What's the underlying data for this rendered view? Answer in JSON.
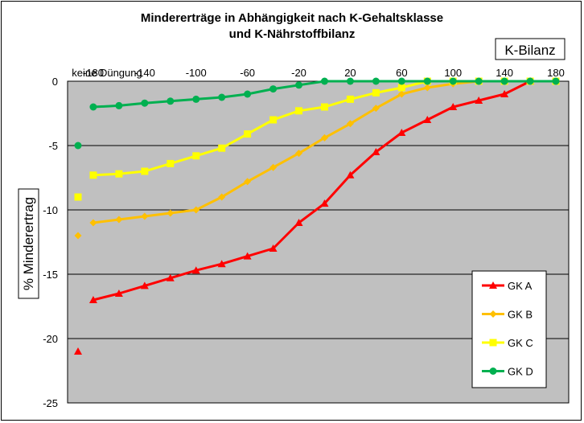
{
  "chart_data": {
    "type": "line",
    "title_line1": "Mindererträge in Abhängigkeit nach K-Gehaltsklasse",
    "title_line2": "und K-Nährstoffbilanz",
    "x_axis_title": "K-Bilanz",
    "y_axis_title": "% Minderertrag",
    "no_fertilization_label": "keine Düngung",
    "x_ticks": [
      -180,
      -140,
      -100,
      -60,
      -20,
      20,
      60,
      100,
      140,
      180
    ],
    "y_ticks": [
      0,
      -5,
      -10,
      -15,
      -20,
      -25
    ],
    "xlim": [
      -200,
      190
    ],
    "ylim": [
      -25,
      0
    ],
    "grid": "horizontal",
    "legend_position": "bottom-right",
    "plot_background": "#c0c0c0",
    "x": [
      -180,
      -160,
      -140,
      -120,
      -100,
      -80,
      -60,
      -40,
      -20,
      0,
      20,
      40,
      60,
      80,
      100,
      120,
      140,
      160,
      180
    ],
    "series": [
      {
        "name": "GK A",
        "color": "#ff0000",
        "marker": "triangle",
        "no_fertilization_value": -21,
        "values": [
          -17,
          -16.5,
          -15.9,
          -15.3,
          -14.7,
          -14.2,
          -13.6,
          -13.0,
          -11.0,
          -9.5,
          -7.3,
          -5.5,
          -4.0,
          -3.0,
          -2.0,
          -1.5,
          -1.0,
          0,
          null
        ]
      },
      {
        "name": "GK B",
        "color": "#ffc000",
        "marker": "diamond",
        "no_fertilization_value": -12,
        "values": [
          -11,
          -10.75,
          -10.5,
          -10.25,
          -10.0,
          -9.0,
          -7.8,
          -6.7,
          -5.6,
          -4.4,
          -3.3,
          -2.1,
          -1.0,
          -0.5,
          -0.2,
          0,
          0,
          0,
          0
        ]
      },
      {
        "name": "GK C",
        "color": "#ffff00",
        "marker": "square",
        "no_fertilization_value": -9,
        "values": [
          -7.3,
          -7.2,
          -7.0,
          -6.4,
          -5.8,
          -5.2,
          -4.1,
          -3.0,
          -2.3,
          -2.0,
          -1.4,
          -0.9,
          -0.5,
          0,
          0,
          0,
          0,
          0,
          0
        ]
      },
      {
        "name": "GK D",
        "color": "#00b050",
        "marker": "circle",
        "no_fertilization_value": -5,
        "values": [
          -2.0,
          -1.9,
          -1.7,
          -1.55,
          -1.4,
          -1.25,
          -1.0,
          -0.6,
          -0.3,
          0,
          0,
          0,
          0,
          0,
          0,
          0,
          0,
          0,
          0
        ]
      }
    ]
  }
}
